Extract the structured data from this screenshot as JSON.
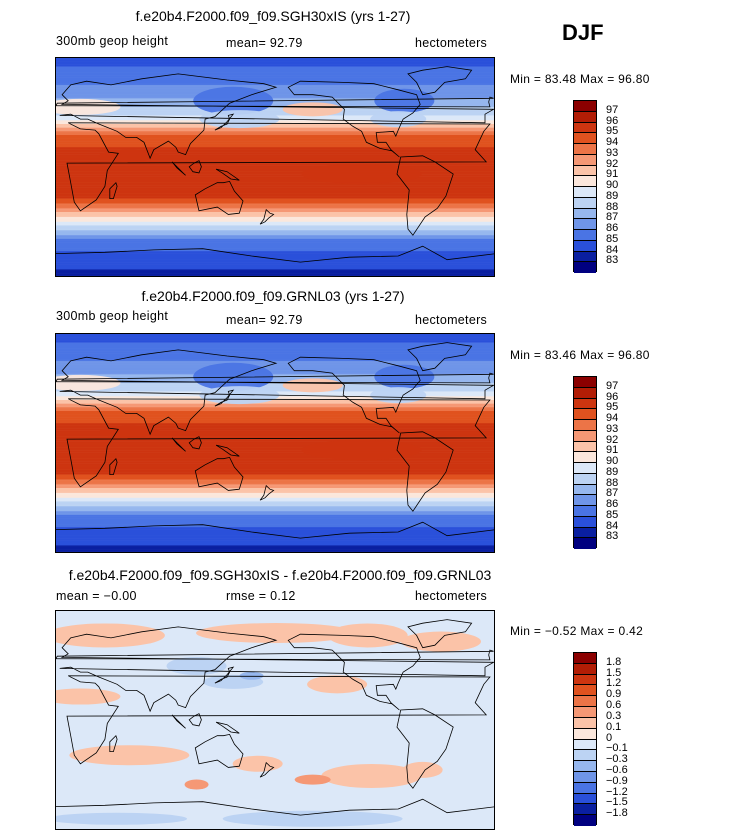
{
  "season": "DJF",
  "panels": [
    {
      "title": "f.e20b4.F2000.f09_f09.SGH30xIS (yrs 1-27)",
      "subtitle_left": "300mb  geop  height",
      "mean_text": "mean=   92.79",
      "units": "hectometers",
      "min_label": "Min =",
      "min_value": "83.48",
      "max_label": "Max =",
      "max_value": "96.80"
    },
    {
      "title": "f.e20b4.F2000.f09_f09.GRNL03 (yrs 1-27)",
      "subtitle_left": "300mb  geop  height",
      "mean_text": "mean=   92.79",
      "units": "hectometers",
      "min_label": "Min =",
      "min_value": "83.46",
      "max_label": "Max =",
      "max_value": "96.80"
    },
    {
      "title": "f.e20b4.F2000.f09_f09.SGH30xIS - f.e20b4.F2000.f09_f09.GRNL03",
      "subtitle_left": "mean =   −0.00",
      "mean_text": "rmse =    0.12",
      "units": "hectometers",
      "min_label": "Min =",
      "min_value": "−0.52",
      "max_label": "Max =",
      "max_value": "0.42"
    }
  ],
  "chart_data": [
    {
      "type": "heatmap",
      "title": "f.e20b4.F2000.f09_f09.SGH30xIS (yrs 1-27)",
      "variable": "300mb geop height",
      "units": "hectometers",
      "mean": 92.79,
      "min": 83.48,
      "max": 96.8,
      "colorbar_levels": [
        "97",
        "96",
        "95",
        "94",
        "93",
        "92",
        "91",
        "90",
        "89",
        "88",
        "87",
        "86",
        "85",
        "84",
        "83"
      ],
      "colorbar_colors": [
        "#8b0000",
        "#b21d05",
        "#cd3510",
        "#e0521f",
        "#ec7447",
        "#f59875",
        "#fbc3a8",
        "#fbe7dc",
        "#dce8f8",
        "#bcd3f3",
        "#96b7ee",
        "#6f95e8",
        "#4a74e4",
        "#2a50da",
        "#0a1fa0",
        "#000080"
      ],
      "lat_profile_deg": [
        90,
        60,
        40,
        25,
        0,
        -25,
        -40,
        -60,
        -90
      ],
      "lat_profile_value": [
        84.5,
        86.5,
        89.5,
        94.5,
        96.0,
        95.0,
        91.0,
        85.5,
        83.5
      ]
    },
    {
      "type": "heatmap",
      "title": "f.e20b4.F2000.f09_f09.GRNL03 (yrs 1-27)",
      "variable": "300mb geop height",
      "units": "hectometers",
      "mean": 92.79,
      "min": 83.46,
      "max": 96.8,
      "colorbar_levels": [
        "97",
        "96",
        "95",
        "94",
        "93",
        "92",
        "91",
        "90",
        "89",
        "88",
        "87",
        "86",
        "85",
        "84",
        "83"
      ],
      "colorbar_colors": [
        "#8b0000",
        "#b21d05",
        "#cd3510",
        "#e0521f",
        "#ec7447",
        "#f59875",
        "#fbc3a8",
        "#fbe7dc",
        "#dce8f8",
        "#bcd3f3",
        "#96b7ee",
        "#6f95e8",
        "#4a74e4",
        "#2a50da",
        "#0a1fa0",
        "#000080"
      ],
      "lat_profile_deg": [
        90,
        60,
        40,
        25,
        0,
        -25,
        -40,
        -60,
        -90
      ],
      "lat_profile_value": [
        84.5,
        86.5,
        89.5,
        94.5,
        96.0,
        95.0,
        91.0,
        85.5,
        83.5
      ]
    },
    {
      "type": "heatmap",
      "title": "f.e20b4.F2000.f09_f09.SGH30xIS - f.e20b4.F2000.f09_f09.GRNL03",
      "units": "hectometers",
      "mean": -0.0,
      "rmse": 0.12,
      "min": -0.52,
      "max": 0.42,
      "colorbar_levels": [
        "1.8",
        "1.5",
        "1.2",
        "0.9",
        "0.6",
        "0.3",
        "0.1",
        "0",
        "−0.1",
        "−0.3",
        "−0.6",
        "−0.9",
        "−1.2",
        "−1.5",
        "−1.8"
      ],
      "colorbar_colors": [
        "#8b0000",
        "#b21d05",
        "#cd3510",
        "#e0521f",
        "#ec7447",
        "#f59875",
        "#fbc3a8",
        "#fbe7dc",
        "#dce8f8",
        "#bcd3f3",
        "#96b7ee",
        "#6f95e8",
        "#4a74e4",
        "#2a50da",
        "#0a1fa0",
        "#000080"
      ]
    }
  ]
}
